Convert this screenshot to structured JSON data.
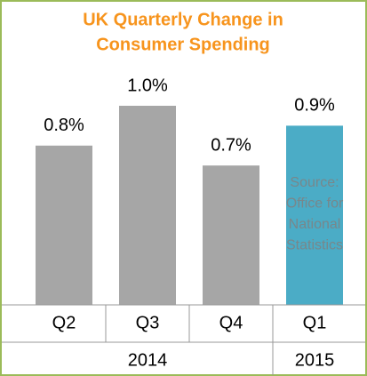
{
  "chart_data": {
    "type": "bar",
    "title": [
      "UK Quarterly Change in",
      "Consumer Spending"
    ],
    "categories": [
      "Q2",
      "Q3",
      "Q4",
      "Q1"
    ],
    "category_groups": [
      {
        "label": "2014",
        "span": 3
      },
      {
        "label": "2015",
        "span": 1
      }
    ],
    "values": [
      0.8,
      1.0,
      0.7,
      0.9
    ],
    "value_labels": [
      "0.8%",
      "1.0%",
      "0.7%",
      "0.9%"
    ],
    "colors": [
      "#a6a6a6",
      "#a6a6a6",
      "#a6a6a6",
      "#4bacc6"
    ],
    "ylim": [
      0,
      1.0
    ],
    "annotation": [
      "Source:",
      "Office for",
      "National",
      "Statistics"
    ]
  }
}
